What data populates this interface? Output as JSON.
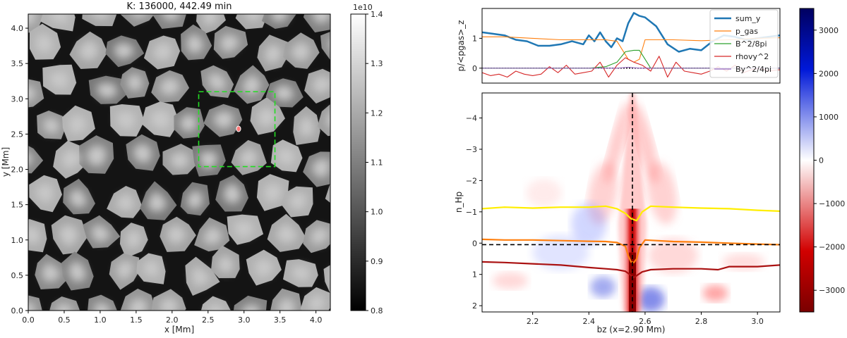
{
  "chart_data": [
    {
      "type": "heatmap",
      "title": "K: 136000, 442.49 min",
      "xlabel": "x [Mm]",
      "ylabel": "y [Mm]",
      "xlim": [
        0,
        4.2
      ],
      "ylim": [
        0,
        4.2
      ],
      "xticks": [
        "0.0",
        "0.5",
        "1.0",
        "1.5",
        "2.0",
        "2.5",
        "3.0",
        "3.5",
        "4.0"
      ],
      "yticks": [
        "0.0",
        "0.5",
        "1.0",
        "1.5",
        "2.0",
        "2.5",
        "3.0",
        "3.5",
        "4.0"
      ],
      "colormap": "gray",
      "colorbar": {
        "min": 0.8,
        "max": 1.4,
        "ticks": [
          "0.8",
          "0.9",
          "1.0",
          "1.1",
          "1.2",
          "1.3",
          "1.4"
        ],
        "offset_label": "1e10"
      },
      "box": {
        "x0": 2.37,
        "x1": 3.43,
        "y0": 2.04,
        "y1": 3.1,
        "color": "#22dd22"
      },
      "grid": false
    },
    {
      "type": "line",
      "xlabel": "",
      "ylabel": "p/<pgas>_z",
      "xlim": [
        2.02,
        3.08
      ],
      "ylim": [
        -0.5,
        2.0
      ],
      "yticks": [
        "0",
        "1"
      ],
      "zero_line": true,
      "legend": "top-right",
      "series": [
        {
          "name": "sum_y",
          "color": "#1f77b4",
          "x": [
            2.02,
            2.06,
            2.1,
            2.14,
            2.18,
            2.22,
            2.26,
            2.3,
            2.34,
            2.38,
            2.4,
            2.42,
            2.44,
            2.46,
            2.48,
            2.5,
            2.52,
            2.54,
            2.56,
            2.58,
            2.6,
            2.64,
            2.68,
            2.72,
            2.76,
            2.8,
            2.84,
            2.88,
            2.92,
            2.96,
            3.0,
            3.04,
            3.08
          ],
          "y": [
            1.2,
            1.15,
            1.1,
            0.95,
            0.9,
            0.75,
            0.75,
            0.8,
            0.9,
            0.8,
            1.1,
            0.9,
            1.2,
            0.9,
            0.7,
            1.0,
            0.9,
            1.5,
            1.85,
            1.75,
            1.7,
            1.4,
            0.8,
            0.55,
            0.65,
            0.6,
            0.9,
            1.1,
            1.05,
            0.95,
            1.0,
            1.05,
            1.1
          ]
        },
        {
          "name": "p_gas",
          "color": "#ff7f0e",
          "x": [
            2.02,
            2.1,
            2.2,
            2.3,
            2.4,
            2.46,
            2.5,
            2.54,
            2.56,
            2.58,
            2.6,
            2.64,
            2.7,
            2.8,
            2.9,
            3.0,
            3.08
          ],
          "y": [
            1.05,
            1.05,
            1.0,
            0.95,
            0.95,
            0.95,
            0.9,
            0.3,
            0.2,
            0.3,
            0.95,
            0.95,
            0.95,
            0.92,
            0.95,
            1.0,
            1.02
          ]
        },
        {
          "name": "B^2/8pi",
          "color": "#2ca02c",
          "x": [
            2.02,
            2.4,
            2.46,
            2.5,
            2.53,
            2.56,
            2.58,
            2.6,
            2.62,
            3.08
          ],
          "y": [
            0,
            0,
            0.05,
            0.2,
            0.55,
            0.6,
            0.6,
            0.3,
            0,
            0
          ]
        },
        {
          "name": "rhovy^2",
          "color": "#d62728",
          "x": [
            2.02,
            2.05,
            2.08,
            2.11,
            2.14,
            2.17,
            2.2,
            2.23,
            2.26,
            2.29,
            2.32,
            2.35,
            2.38,
            2.41,
            2.44,
            2.47,
            2.5,
            2.53,
            2.56,
            2.59,
            2.62,
            2.65,
            2.68,
            2.71,
            2.74,
            2.77,
            2.8,
            2.83,
            2.86,
            2.89,
            2.92,
            2.95,
            2.98,
            3.01,
            3.04,
            3.08
          ],
          "y": [
            -0.15,
            -0.25,
            -0.2,
            -0.3,
            -0.1,
            -0.2,
            -0.25,
            -0.2,
            0.05,
            -0.15,
            0.1,
            -0.2,
            -0.15,
            -0.1,
            0.2,
            -0.3,
            0.1,
            0.35,
            0.2,
            0.1,
            -0.1,
            0.4,
            -0.3,
            0.2,
            -0.1,
            -0.15,
            -0.2,
            -0.1,
            0.05,
            -0.1,
            0.1,
            -0.15,
            -0.05,
            0.0,
            -0.1,
            -0.05
          ]
        },
        {
          "name": "By^2/4pi",
          "color": "#9467bd",
          "x": [
            2.02,
            2.5,
            2.54,
            2.58,
            3.08
          ],
          "y": [
            0,
            0,
            0.03,
            0,
            0
          ]
        }
      ]
    },
    {
      "type": "heatmap",
      "xlabel": "bz (x=2.90 Mm)",
      "ylabel": "n_Hp",
      "xlim": [
        2.02,
        3.08
      ],
      "ylim": [
        2.2,
        -4.8
      ],
      "xticks": [
        "2.2",
        "2.4",
        "2.6",
        "2.8",
        "3.0"
      ],
      "yticks": [
        "−4",
        "−3",
        "−2",
        "−1",
        "0",
        "1",
        "2"
      ],
      "colormap": "seismic_r",
      "colorbar": {
        "min": -3500,
        "max": 3500,
        "ticks": [
          "3000",
          "2000",
          "1000",
          "0",
          "−1000",
          "−2000",
          "−3000"
        ]
      },
      "vline_x": 2.555,
      "hline_y": 0.05,
      "contours": [
        {
          "color": "#ffee00",
          "x": [
            2.02,
            2.1,
            2.2,
            2.3,
            2.4,
            2.46,
            2.5,
            2.53,
            2.55,
            2.57,
            2.59,
            2.62,
            2.7,
            2.8,
            2.9,
            3.0,
            3.08
          ],
          "y": [
            -1.1,
            -1.15,
            -1.12,
            -1.15,
            -1.15,
            -1.18,
            -1.1,
            -0.95,
            -0.78,
            -0.72,
            -1.0,
            -1.18,
            -1.15,
            -1.12,
            -1.1,
            -1.05,
            -1.02
          ]
        },
        {
          "color": "#ff7f0e",
          "x": [
            2.02,
            2.1,
            2.2,
            2.3,
            2.4,
            2.46,
            2.5,
            2.53,
            2.54,
            2.55,
            2.56,
            2.57,
            2.58,
            2.6,
            2.7,
            2.8,
            2.9,
            3.0,
            3.08
          ],
          "y": [
            -0.12,
            -0.1,
            -0.1,
            -0.08,
            -0.06,
            -0.05,
            -0.02,
            0.1,
            0.4,
            0.6,
            0.62,
            0.5,
            0.15,
            -0.1,
            -0.05,
            -0.03,
            0.0,
            0.03,
            0.05
          ]
        },
        {
          "color": "#aa1111",
          "x": [
            2.02,
            2.1,
            2.2,
            2.3,
            2.4,
            2.46,
            2.5,
            2.53,
            2.56,
            2.59,
            2.62,
            2.7,
            2.8,
            2.86,
            2.9,
            3.0,
            3.08
          ],
          "y": [
            0.6,
            0.62,
            0.66,
            0.7,
            0.78,
            0.82,
            0.85,
            0.9,
            1.1,
            0.92,
            0.85,
            0.82,
            0.82,
            0.85,
            0.75,
            0.75,
            0.7
          ]
        }
      ]
    }
  ]
}
